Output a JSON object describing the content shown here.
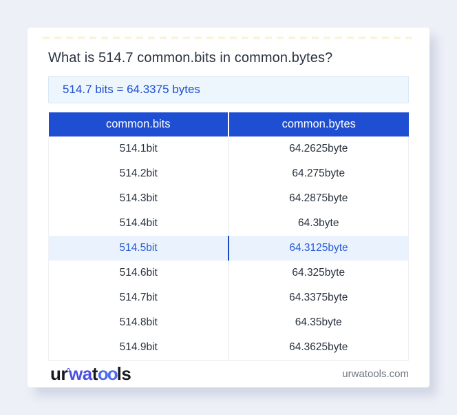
{
  "title": "What is 514.7 common.bits in common.bytes?",
  "result": "514.7 bits = 64.3375 bytes",
  "table": {
    "headers": [
      "common.bits",
      "common.bytes"
    ],
    "rows": [
      [
        "514.1bit",
        "64.2625byte"
      ],
      [
        "514.2bit",
        "64.275byte"
      ],
      [
        "514.3bit",
        "64.2875byte"
      ],
      [
        "514.4bit",
        "64.3byte"
      ],
      [
        "514.5bit",
        "64.3125byte"
      ],
      [
        "514.6bit",
        "64.325byte"
      ],
      [
        "514.7bit",
        "64.3375byte"
      ],
      [
        "514.8bit",
        "64.35byte"
      ],
      [
        "514.9bit",
        "64.3625byte"
      ]
    ],
    "highlight_index": 4
  },
  "footer": {
    "logo": {
      "part1": "ur",
      "part2": "wa",
      "part3": "t",
      "part4": "oo",
      "part5": "ls"
    },
    "site": "urwatools.com"
  },
  "colors": {
    "page_background": "#eef0f7",
    "header_blue": "#1e4ed1",
    "result_text_blue": "#1d4fd1",
    "result_background": "#edf5fd",
    "highlight_row_background": "#eaf3fd",
    "highlight_row_text": "#2a5bd7",
    "logo_blue": "#4c4fe4",
    "body_text": "#29323e"
  }
}
